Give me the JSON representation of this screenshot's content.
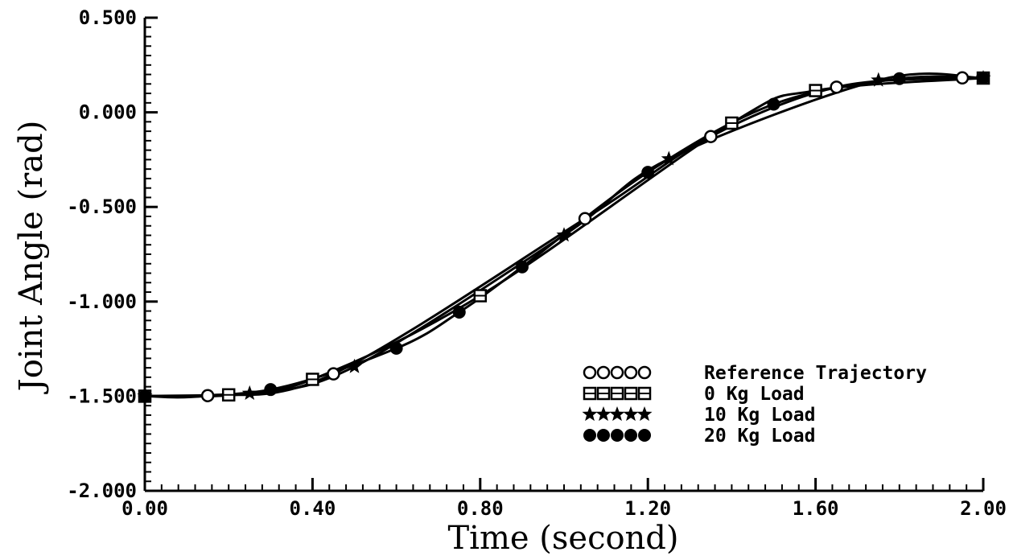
{
  "chart_data": {
    "type": "line",
    "xlabel": "Time (second)",
    "ylabel": "Joint Angle (rad)",
    "xlim": [
      0.0,
      2.0
    ],
    "ylim": [
      -2.0,
      0.5
    ],
    "x_ticks": [
      0.0,
      0.4,
      0.8,
      1.2,
      1.6,
      2.0
    ],
    "x_tick_labels": [
      "0.00",
      "0.40",
      "0.80",
      "1.20",
      "1.60",
      "2.00"
    ],
    "y_ticks": [
      0.5,
      0.0,
      -0.5,
      -1.0,
      -1.5,
      -2.0
    ],
    "y_tick_labels": [
      "0.500",
      "0.000",
      "-0.500",
      "-1.000",
      "-1.500",
      "-2.000"
    ],
    "grid": false,
    "legend_position": "lower-right",
    "series": [
      {
        "name": "Reference Trajectory",
        "marker": "open-circle",
        "x": [
          0.0,
          0.15,
          0.45,
          1.05,
          1.35,
          1.65,
          1.95
        ],
        "y": [
          -1.5,
          -1.497,
          -1.382,
          -0.562,
          -0.128,
          0.133,
          0.182
        ]
      },
      {
        "name": "0 Kg Load",
        "marker": "open-square",
        "x": [
          0.0,
          0.2,
          0.4,
          0.8,
          1.4,
          1.6,
          2.0
        ],
        "y": [
          -1.5,
          -1.493,
          -1.411,
          -0.969,
          -0.057,
          0.115,
          0.181
        ]
      },
      {
        "name": "10 Kg Load",
        "marker": "star",
        "x": [
          0.0,
          0.25,
          0.5,
          1.0,
          1.25,
          1.75,
          2.0
        ],
        "y": [
          -1.5,
          -1.485,
          -1.344,
          -0.649,
          -0.246,
          0.17,
          0.181
        ]
      },
      {
        "name": "20 Kg Load",
        "marker": "filled-circle",
        "x": [
          0.0,
          0.3,
          0.6,
          0.75,
          0.9,
          1.2,
          1.5,
          1.8,
          2.0
        ],
        "y": [
          -1.5,
          -1.465,
          -1.247,
          -1.056,
          -0.817,
          -0.317,
          0.043,
          0.178,
          0.181
        ]
      }
    ]
  }
}
